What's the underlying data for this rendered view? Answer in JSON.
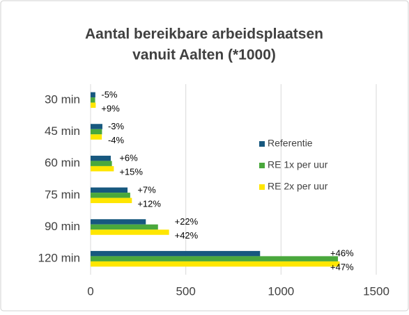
{
  "chart_data": {
    "type": "barh",
    "title": [
      "Aantal bereikbare arbeidsplaatsen",
      "vanuit Aalten (*1000)"
    ],
    "categories": [
      "30 min",
      "45 min",
      "60 min",
      "75 min",
      "90 min",
      "120 min"
    ],
    "series": [
      {
        "name": "Referentie",
        "color": "#17587f",
        "values": [
          25,
          62,
          106,
          194,
          290,
          890
        ]
      },
      {
        "name": "RE 1x per uur",
        "color": "#4aa83c",
        "values": [
          24,
          60,
          112,
          208,
          354,
          1299
        ],
        "change_labels": [
          "-5%",
          "-3%",
          "+6%",
          "+7%",
          "+22%",
          "+46%"
        ]
      },
      {
        "name": "RE 2x per uur",
        "color": "#ffe600",
        "values": [
          27,
          59,
          122,
          217,
          412,
          1308
        ],
        "change_labels": [
          "+9%",
          "-4%",
          "+15%",
          "+12%",
          "+42%",
          "+47%"
        ]
      }
    ],
    "xlim": [
      0,
      1500
    ],
    "xticks": [
      0,
      500,
      1000,
      1500
    ],
    "grid": true,
    "legend": "right"
  }
}
